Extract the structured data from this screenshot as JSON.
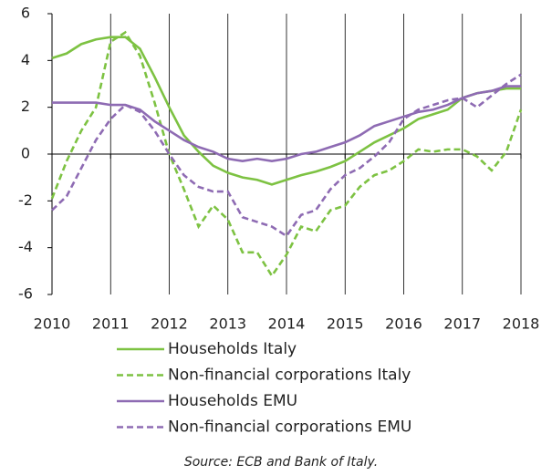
{
  "chart_data": {
    "type": "line",
    "x": [
      2010,
      2010.25,
      2010.5,
      2010.75,
      2011,
      2011.25,
      2011.5,
      2011.75,
      2012,
      2012.25,
      2012.5,
      2012.75,
      2013,
      2013.25,
      2013.5,
      2013.75,
      2014,
      2014.25,
      2014.5,
      2014.75,
      2015,
      2015.25,
      2015.5,
      2015.75,
      2016,
      2016.25,
      2016.5,
      2016.75,
      2017,
      2017.25,
      2017.5,
      2017.75,
      2018
    ],
    "xlim": [
      2010,
      2018
    ],
    "xticks": [
      2010,
      2011,
      2012,
      2013,
      2014,
      2015,
      2016,
      2017,
      2018
    ],
    "ylim": [
      -6,
      6
    ],
    "yticks": [
      -6,
      -4,
      -2,
      0,
      2,
      4,
      6
    ],
    "grid": true,
    "series": [
      {
        "name": "Households Italy",
        "color": "#7dc242",
        "dash": false,
        "values": [
          4.1,
          4.3,
          4.7,
          4.9,
          5.0,
          5.0,
          4.5,
          3.3,
          2.0,
          0.8,
          0.1,
          -0.5,
          -0.8,
          -1.0,
          -1.1,
          -1.3,
          -1.1,
          -0.9,
          -0.75,
          -0.55,
          -0.3,
          0.1,
          0.5,
          0.8,
          1.1,
          1.5,
          1.7,
          1.9,
          2.4,
          2.6,
          2.7,
          2.8,
          2.8
        ]
      },
      {
        "name": "Non-financial corporations Italy",
        "color": "#7dc242",
        "dash": true,
        "values": [
          -1.9,
          -0.3,
          1.0,
          2.0,
          4.8,
          5.2,
          4.2,
          2.2,
          0.0,
          -1.5,
          -3.1,
          -2.2,
          -2.8,
          -4.2,
          -4.2,
          -5.2,
          -4.3,
          -3.1,
          -3.3,
          -2.4,
          -2.2,
          -1.4,
          -0.9,
          -0.7,
          -0.3,
          0.2,
          0.1,
          0.2,
          0.2,
          -0.1,
          -0.7,
          0.1,
          1.9
        ]
      },
      {
        "name": "Households EMU",
        "color": "#8e6bb3",
        "dash": false,
        "values": [
          2.2,
          2.2,
          2.2,
          2.2,
          2.1,
          2.1,
          1.9,
          1.4,
          1.0,
          0.6,
          0.3,
          0.1,
          -0.2,
          -0.3,
          -0.2,
          -0.3,
          -0.2,
          0.0,
          0.1,
          0.3,
          0.5,
          0.8,
          1.2,
          1.4,
          1.6,
          1.8,
          1.9,
          2.1,
          2.4,
          2.6,
          2.7,
          2.9,
          2.9
        ]
      },
      {
        "name": "Non-financial corporations EMU",
        "color": "#8e6bb3",
        "dash": true,
        "values": [
          -2.4,
          -1.8,
          -0.6,
          0.6,
          1.5,
          2.1,
          1.8,
          1.0,
          0.0,
          -0.9,
          -1.4,
          -1.6,
          -1.6,
          -2.7,
          -2.9,
          -3.1,
          -3.5,
          -2.6,
          -2.4,
          -1.5,
          -0.9,
          -0.6,
          -0.1,
          0.5,
          1.5,
          1.9,
          2.1,
          2.3,
          2.4,
          2.0,
          2.5,
          3.0,
          3.4
        ]
      }
    ],
    "source": "Source: ECB and Bank of Italy."
  }
}
